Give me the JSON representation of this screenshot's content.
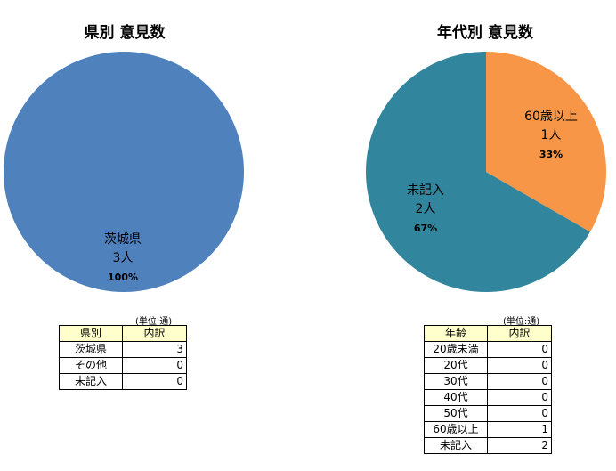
{
  "chart_data": [
    {
      "type": "pie",
      "title": "県別 意見数",
      "slices": [
        {
          "label": "茨城県",
          "count_label": "3人",
          "percent_label": "100%",
          "value": 3,
          "color": "#4f81bd"
        }
      ],
      "table": {
        "unit_note": "(単位:通)",
        "headers": [
          "県別",
          "内訳"
        ],
        "rows": [
          {
            "category": "茨城県",
            "value": "3"
          },
          {
            "category": "その他",
            "value": "0"
          },
          {
            "category": "未記入",
            "value": "0"
          }
        ]
      }
    },
    {
      "type": "pie",
      "title": "年代別 意見数",
      "slices": [
        {
          "label": "60歳以上",
          "count_label": "1人",
          "percent_label": "33%",
          "value": 1,
          "color": "#f79646"
        },
        {
          "label": "未記入",
          "count_label": "2人",
          "percent_label": "67%",
          "value": 2,
          "color": "#31859c"
        }
      ],
      "table": {
        "unit_note": "(単位:通)",
        "headers": [
          "年齢",
          "内訳"
        ],
        "rows": [
          {
            "category": "20歳未満",
            "value": "0"
          },
          {
            "category": "20代",
            "value": "0"
          },
          {
            "category": "30代",
            "value": "0"
          },
          {
            "category": "40代",
            "value": "0"
          },
          {
            "category": "50代",
            "value": "0"
          },
          {
            "category": "60歳以上",
            "value": "1"
          },
          {
            "category": "未記入",
            "value": "2"
          }
        ]
      }
    }
  ]
}
